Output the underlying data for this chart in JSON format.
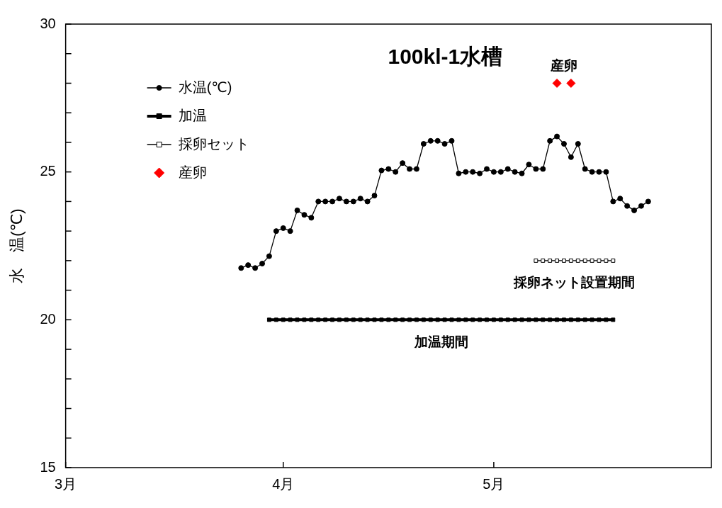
{
  "chart_data": {
    "type": "line",
    "title": "100kl-1水槽",
    "ylabel": "水　温(℃)",
    "xlim": [
      "--03-01",
      "--06-01"
    ],
    "xticks": [
      {
        "value": "--03-01",
        "label": "3月"
      },
      {
        "value": "--04-01",
        "label": "4月"
      },
      {
        "value": "--05-01",
        "label": "5月"
      }
    ],
    "ylim": [
      15,
      30
    ],
    "yticks": [
      15,
      {
        "value": 16,
        "label": null
      },
      {
        "value": 17,
        "label": null
      },
      {
        "value": 18,
        "label": null
      },
      {
        "value": 19,
        "label": null
      },
      20,
      {
        "value": 21,
        "label": null
      },
      {
        "value": 22,
        "label": null
      },
      {
        "value": 23,
        "label": null
      },
      {
        "value": 24,
        "label": null
      },
      25,
      {
        "value": 26,
        "label": null
      },
      {
        "value": 27,
        "label": null
      },
      {
        "value": 28,
        "label": null
      },
      {
        "value": 29,
        "label": null
      },
      30
    ],
    "grid": false,
    "legend": "top left",
    "series": [
      {
        "name": "水温(℃)",
        "marker": "circle",
        "color": "#000000",
        "x": [
          "--03-26",
          "--03-27",
          "--03-28",
          "--03-29",
          "--03-30",
          "--03-31",
          "--04-01",
          "--04-02",
          "--04-03",
          "--04-04",
          "--04-05",
          "--04-06",
          "--04-07",
          "--04-08",
          "--04-09",
          "--04-10",
          "--04-11",
          "--04-12",
          "--04-13",
          "--04-14",
          "--04-15",
          "--04-16",
          "--04-17",
          "--04-18",
          "--04-19",
          "--04-20",
          "--04-21",
          "--04-22",
          "--04-23",
          "--04-24",
          "--04-25",
          "--04-26",
          "--04-27",
          "--04-28",
          "--04-29",
          "--04-30",
          "--05-01",
          "--05-02",
          "--05-03",
          "--05-04",
          "--05-05",
          "--05-06",
          "--05-07",
          "--05-08",
          "--05-09",
          "--05-10",
          "--05-11",
          "--05-12",
          "--05-13",
          "--05-14",
          "--05-15",
          "--05-16",
          "--05-17",
          "--05-18",
          "--05-19",
          "--05-20",
          "--05-21",
          "--05-22",
          "--05-23"
        ],
        "values": [
          21.75,
          21.85,
          21.75,
          21.9,
          22.15,
          23.0,
          23.1,
          23.0,
          23.7,
          23.55,
          23.45,
          24.0,
          24.0,
          24.0,
          24.1,
          24.0,
          24.0,
          24.1,
          24.0,
          24.2,
          25.05,
          25.1,
          25.0,
          25.3,
          25.1,
          25.1,
          25.95,
          26.05,
          26.05,
          25.95,
          26.05,
          24.95,
          25.0,
          25.0,
          24.95,
          25.1,
          25.0,
          25.0,
          25.1,
          25.0,
          24.95,
          25.25,
          25.1,
          25.1,
          26.05,
          26.2,
          25.95,
          25.5,
          25.95,
          25.1,
          25.0,
          25.0,
          25.0,
          24.0,
          24.1,
          23.85,
          23.7,
          23.85,
          24.0
        ]
      },
      {
        "name": "加温",
        "marker": "square",
        "color": "#000000",
        "x": [
          "--03-30",
          "--03-31",
          "--04-01",
          "--04-02",
          "--04-03",
          "--04-04",
          "--04-05",
          "--04-06",
          "--04-07",
          "--04-08",
          "--04-09",
          "--04-10",
          "--04-11",
          "--04-12",
          "--04-13",
          "--04-14",
          "--04-15",
          "--04-16",
          "--04-17",
          "--04-18",
          "--04-19",
          "--04-20",
          "--04-21",
          "--04-22",
          "--04-23",
          "--04-24",
          "--04-25",
          "--04-26",
          "--04-27",
          "--04-28",
          "--04-29",
          "--04-30",
          "--05-01",
          "--05-02",
          "--05-03",
          "--05-04",
          "--05-05",
          "--05-06",
          "--05-07",
          "--05-08",
          "--05-09",
          "--05-10",
          "--05-11",
          "--05-12",
          "--05-13",
          "--05-14",
          "--05-15",
          "--05-16",
          "--05-17",
          "--05-18"
        ],
        "values": [
          20,
          20,
          20,
          20,
          20,
          20,
          20,
          20,
          20,
          20,
          20,
          20,
          20,
          20,
          20,
          20,
          20,
          20,
          20,
          20,
          20,
          20,
          20,
          20,
          20,
          20,
          20,
          20,
          20,
          20,
          20,
          20,
          20,
          20,
          20,
          20,
          20,
          20,
          20,
          20,
          20,
          20,
          20,
          20,
          20,
          20,
          20,
          20,
          20,
          20
        ]
      },
      {
        "name": "採卵セット",
        "marker": "square",
        "color": "#000000",
        "x": [
          "--05-07",
          "--05-08",
          "--05-09",
          "--05-10",
          "--05-11",
          "--05-12",
          "--05-13",
          "--05-14",
          "--05-15",
          "--05-16",
          "--05-17",
          "--05-18"
        ],
        "values": [
          22,
          22,
          22,
          22,
          22,
          22,
          22,
          22,
          22,
          22,
          22,
          22
        ]
      },
      {
        "name": "産卵",
        "type": "scatter",
        "marker": "diamond",
        "color": "#ff0000",
        "x": [
          "--05-10",
          "--05-12"
        ],
        "values": [
          28,
          28
        ]
      }
    ],
    "annotations": [
      "加温期間",
      "採卵ネット設置期間",
      "産卵"
    ]
  }
}
